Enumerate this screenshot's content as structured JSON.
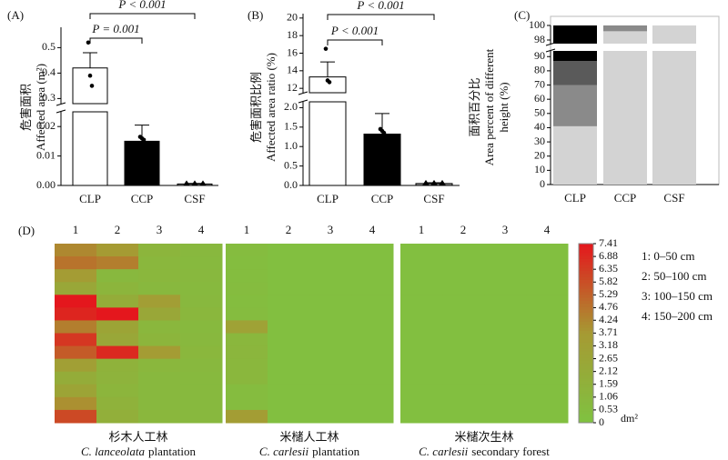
{
  "chart_data": [
    {
      "type": "broken-bar",
      "panel": "(A)",
      "ylabel_zh": "危害面积",
      "ylabel": "Affected area (m²)",
      "categories": [
        "CLP",
        "CCP",
        "CSF"
      ],
      "values": [
        0.42,
        0.015,
        0.0005
      ],
      "errors": [
        0.06,
        0.0055,
        0.0002
      ],
      "points": [
        [
          0.52,
          0.39,
          0.35
        ],
        [
          0.0165,
          0.016,
          0.0155
        ],
        [
          0.0005,
          0.0005,
          0.0005
        ]
      ],
      "colors": [
        "#ffffff",
        "#000000",
        "#9a9a9a"
      ],
      "point_markers": [
        "circle",
        "circle",
        "triangle"
      ],
      "y_segments": [
        {
          "ylim": [
            0,
            0.025
          ],
          "yticks": [
            {
              "value": 0,
              "label": "0.00"
            },
            0.01,
            0.02
          ]
        },
        {
          "ylim": [
            0.28,
            0.58
          ],
          "yticks": [
            0.3,
            0.4,
            0.5
          ]
        }
      ],
      "annotations": [
        {
          "text": "P = 0.001",
          "pair": [
            "CLP",
            "CCP"
          ]
        },
        {
          "text": "P < 0.001",
          "pair": [
            "CLP",
            "CSF"
          ]
        }
      ]
    },
    {
      "type": "broken-bar",
      "panel": "(B)",
      "ylabel_zh": "危害面积比例",
      "ylabel": "Affected area ratio (%)",
      "categories": [
        "CLP",
        "CCP",
        "CSF"
      ],
      "values": [
        13.3,
        1.32,
        0.05
      ],
      "errors": [
        1.7,
        0.53,
        0.02
      ],
      "points": [
        [
          16.5,
          12.9,
          12.7
        ],
        [
          1.45,
          1.4,
          1.35
        ],
        [
          0.05,
          0.05,
          0.05
        ]
      ],
      "colors": [
        "#ffffff",
        "#000000",
        "#9a9a9a"
      ],
      "point_markers": [
        "circle",
        "circle",
        "triangle"
      ],
      "y_segments": [
        {
          "ylim": [
            0,
            2.15
          ],
          "yticks": [
            {
              "value": 0,
              "label": "0.0"
            },
            0.5,
            {
              "value": 1,
              "label": "1.0"
            },
            1.5,
            {
              "value": 2,
              "label": "2.0"
            }
          ]
        },
        {
          "ylim": [
            11.5,
            20.5
          ],
          "yticks": [
            12,
            14,
            16,
            18,
            20
          ]
        }
      ],
      "annotations": [
        {
          "text": "P < 0.001",
          "pair": [
            "CLP",
            "CCP"
          ]
        },
        {
          "text": "P < 0.001",
          "pair": [
            "CLP",
            "CSF"
          ]
        }
      ]
    },
    {
      "type": "broken-stacked-bar",
      "panel": "(C)",
      "ylabel_zh": "面积百分比",
      "ylabel": "Area percent of different",
      "ylabel2": "height (%)",
      "categories": [
        "CLP",
        "CCP",
        "CSF"
      ],
      "series": [
        {
          "color": "#d3d3d3",
          "values": [
            41,
            99.2,
            100
          ]
        },
        {
          "color": "#8a8a8a",
          "values": [
            29,
            0.8,
            0
          ]
        },
        {
          "color": "#5a5a5a",
          "values": [
            17,
            0,
            0
          ]
        },
        {
          "color": "#000000",
          "values": [
            13,
            0,
            0
          ]
        }
      ],
      "y_segments": [
        {
          "ylim": [
            0,
            94
          ],
          "yticks": [
            0,
            10,
            20,
            30,
            40,
            50,
            60,
            70,
            80,
            90
          ]
        },
        {
          "ylim": [
            97.5,
            100
          ],
          "yticks": [
            98,
            100
          ]
        }
      ]
    },
    {
      "type": "heatmap",
      "panel": "(D)",
      "legend": [
        "1: 0–50 cm",
        "2: 50–100 cm",
        "3: 100–150 cm",
        "4: 150–200 cm"
      ],
      "clim": [
        0,
        7.41
      ],
      "colors": [
        "#7fc241",
        "#a69a33",
        "#e4171d"
      ],
      "unit": "dm²",
      "cticks": [
        0,
        0.53,
        1.06,
        1.59,
        2.12,
        2.65,
        3.18,
        3.71,
        4.24,
        4.76,
        5.29,
        5.82,
        6.35,
        6.88,
        7.41
      ],
      "groups": [
        {
          "columns": [
            "1",
            "2",
            "3",
            "4"
          ],
          "name_zh": "杉木人工林",
          "latin": "C. lanceolata",
          "rest": "plantation",
          "values": [
            [
              4.2,
              3.6,
              1.2,
              0.9
            ],
            [
              4.8,
              4.5,
              1.0,
              0.8
            ],
            [
              3.5,
              0.9,
              1.0,
              0.9
            ],
            [
              2.5,
              1.2,
              0.9,
              0.8
            ],
            [
              7.4,
              2.0,
              3.3,
              0.9
            ],
            [
              7.0,
              7.4,
              2.5,
              1.0
            ],
            [
              4.5,
              2.8,
              1.0,
              0.8
            ],
            [
              6.5,
              2.5,
              1.2,
              0.9
            ],
            [
              5.5,
              6.9,
              3.5,
              1.0
            ],
            [
              3.2,
              1.5,
              1.0,
              0.9
            ],
            [
              2.0,
              1.4,
              0.9,
              0.8
            ],
            [
              2.8,
              1.2,
              0.9,
              0.8
            ],
            [
              4.0,
              1.5,
              0.9,
              0.8
            ],
            [
              6.0,
              1.8,
              1.0,
              0.9
            ]
          ]
        },
        {
          "columns": [
            "1",
            "2",
            "3",
            "4"
          ],
          "name_zh": "米槠人工林",
          "latin": "C. carlesii",
          "rest": "plantation",
          "values": [
            [
              0.6,
              0.3,
              0.3,
              0.3
            ],
            [
              0.5,
              0.3,
              0.3,
              0.3
            ],
            [
              0.5,
              0.3,
              0.3,
              0.3
            ],
            [
              0.6,
              0.3,
              0.3,
              0.3
            ],
            [
              0.5,
              0.3,
              0.3,
              0.3
            ],
            [
              0.6,
              0.3,
              0.3,
              0.3
            ],
            [
              3.0,
              0.3,
              0.3,
              0.3
            ],
            [
              1.0,
              0.3,
              0.3,
              0.3
            ],
            [
              1.1,
              0.3,
              0.3,
              0.3
            ],
            [
              1.0,
              0.3,
              0.3,
              0.3
            ],
            [
              1.0,
              0.3,
              0.3,
              0.3
            ],
            [
              0.6,
              0.3,
              0.3,
              0.3
            ],
            [
              0.6,
              0.3,
              0.3,
              0.3
            ],
            [
              3.4,
              0.3,
              0.3,
              0.3
            ]
          ]
        },
        {
          "columns": [
            "1",
            "2",
            "3",
            "4"
          ],
          "name_zh": "米槠次生林",
          "latin": "C. carlesii",
          "rest": "secondary forest",
          "values": [
            [
              0.3,
              0.3,
              0.3,
              0.3
            ],
            [
              0.3,
              0.3,
              0.3,
              0.3
            ],
            [
              0.3,
              0.3,
              0.3,
              0.3
            ],
            [
              0.3,
              0.3,
              0.3,
              0.3
            ],
            [
              0.3,
              0.3,
              0.3,
              0.3
            ],
            [
              0.3,
              0.3,
              0.3,
              0.3
            ],
            [
              0.3,
              0.3,
              0.3,
              0.3
            ],
            [
              0.3,
              0.3,
              0.3,
              0.3
            ],
            [
              0.3,
              0.3,
              0.3,
              0.3
            ],
            [
              0.3,
              0.3,
              0.3,
              0.3
            ],
            [
              0.3,
              0.3,
              0.3,
              0.3
            ],
            [
              0.3,
              0.3,
              0.3,
              0.3
            ],
            [
              0.3,
              0.3,
              0.3,
              0.3
            ],
            [
              0.3,
              0.3,
              0.3,
              0.3
            ]
          ]
        }
      ]
    }
  ]
}
